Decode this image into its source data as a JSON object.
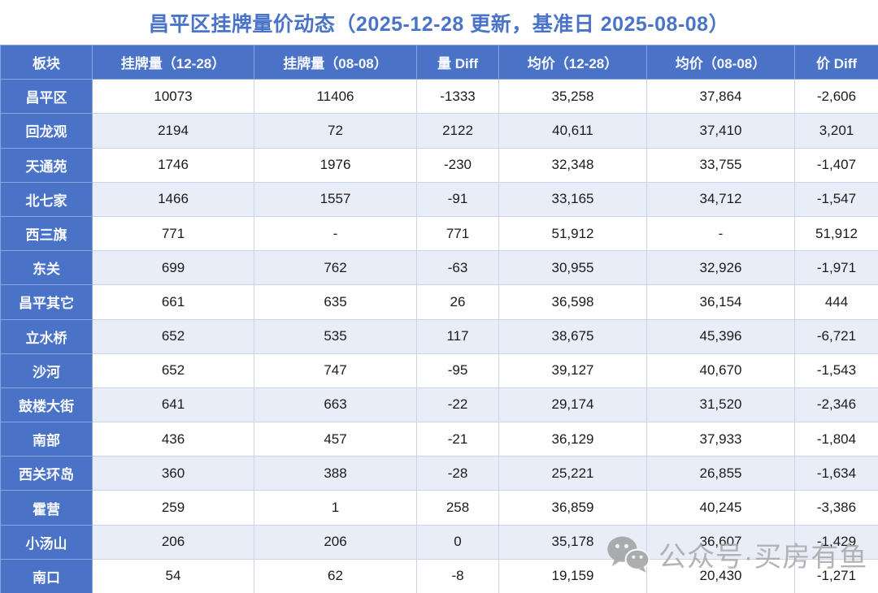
{
  "title": "昌平区挂牌量价动态（2025-12-28 更新，基准日 2025-08-08）",
  "colors": {
    "accent_blue": "#4a73c8",
    "row_alt": "#e9edf8",
    "border": "#c9d3ec",
    "title_blue": "#4a73ca",
    "watermark_gray": "#a8a8a8"
  },
  "table": {
    "columns": [
      "板块",
      "挂牌量（12-28）",
      "挂牌量（08-08）",
      "量 Diff",
      "均价（12-28）",
      "均价（08-08）",
      "价 Diff"
    ],
    "rows": [
      {
        "sector": "昌平区",
        "values": [
          "10073",
          "11406",
          "-1333",
          "35,258",
          "37,864",
          "-2,606"
        ]
      },
      {
        "sector": "回龙观",
        "values": [
          "2194",
          "72",
          "2122",
          "40,611",
          "37,410",
          "3,201"
        ]
      },
      {
        "sector": "天通苑",
        "values": [
          "1746",
          "1976",
          "-230",
          "32,348",
          "33,755",
          "-1,407"
        ]
      },
      {
        "sector": "北七家",
        "values": [
          "1466",
          "1557",
          "-91",
          "33,165",
          "34,712",
          "-1,547"
        ]
      },
      {
        "sector": "西三旗",
        "values": [
          "771",
          "-",
          "771",
          "51,912",
          "-",
          "51,912"
        ]
      },
      {
        "sector": "东关",
        "values": [
          "699",
          "762",
          "-63",
          "30,955",
          "32,926",
          "-1,971"
        ]
      },
      {
        "sector": "昌平其它",
        "values": [
          "661",
          "635",
          "26",
          "36,598",
          "36,154",
          "444"
        ]
      },
      {
        "sector": "立水桥",
        "values": [
          "652",
          "535",
          "117",
          "38,675",
          "45,396",
          "-6,721"
        ]
      },
      {
        "sector": "沙河",
        "values": [
          "652",
          "747",
          "-95",
          "39,127",
          "40,670",
          "-1,543"
        ]
      },
      {
        "sector": "鼓楼大街",
        "values": [
          "641",
          "663",
          "-22",
          "29,174",
          "31,520",
          "-2,346"
        ]
      },
      {
        "sector": "南部",
        "values": [
          "436",
          "457",
          "-21",
          "36,129",
          "37,933",
          "-1,804"
        ]
      },
      {
        "sector": "西关环岛",
        "values": [
          "360",
          "388",
          "-28",
          "25,221",
          "26,855",
          "-1,634"
        ]
      },
      {
        "sector": "霍营",
        "values": [
          "259",
          "1",
          "258",
          "36,859",
          "40,245",
          "-3,386"
        ]
      },
      {
        "sector": "小汤山",
        "values": [
          "206",
          "206",
          "0",
          "35,178",
          "36,607",
          "-1,429"
        ]
      },
      {
        "sector": "南口",
        "values": [
          "54",
          "62",
          "-8",
          "19,159",
          "20,430",
          "-1,271"
        ]
      }
    ]
  },
  "watermark": {
    "text": "公众号·买房有鱼"
  }
}
